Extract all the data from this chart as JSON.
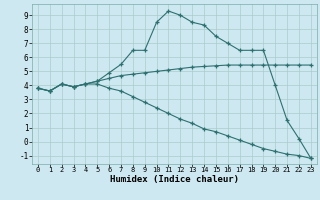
{
  "xlabel": "Humidex (Indice chaleur)",
  "background_color": "#cde8f0",
  "grid_color": "#aacccc",
  "line_color": "#2d7070",
  "xlim": [
    -0.5,
    23.5
  ],
  "ylim": [
    -1.6,
    9.8
  ],
  "xticks": [
    0,
    1,
    2,
    3,
    4,
    5,
    6,
    7,
    8,
    9,
    10,
    11,
    12,
    13,
    14,
    15,
    16,
    17,
    18,
    19,
    20,
    21,
    22,
    23
  ],
  "yticks": [
    -1,
    0,
    1,
    2,
    3,
    4,
    5,
    6,
    7,
    8,
    9
  ],
  "line1_x": [
    0,
    1,
    2,
    3,
    4,
    5,
    6,
    7,
    8,
    9,
    10,
    11,
    12,
    13,
    14,
    15,
    16,
    17,
    18,
    19,
    20,
    21,
    22,
    23
  ],
  "line1_y": [
    3.8,
    3.6,
    4.1,
    3.9,
    4.1,
    4.3,
    4.5,
    4.7,
    4.8,
    4.9,
    5.0,
    5.1,
    5.2,
    5.3,
    5.35,
    5.4,
    5.45,
    5.45,
    5.45,
    5.45,
    5.45,
    5.45,
    5.45,
    5.45
  ],
  "line2_x": [
    0,
    1,
    2,
    3,
    4,
    5,
    6,
    7,
    8,
    9,
    10,
    11,
    12,
    13,
    14,
    15,
    16,
    17,
    18,
    19,
    20,
    21,
    22,
    23
  ],
  "line2_y": [
    3.8,
    3.6,
    4.1,
    3.9,
    4.1,
    4.3,
    4.9,
    5.5,
    6.5,
    6.5,
    8.5,
    9.3,
    9.0,
    8.5,
    8.3,
    7.5,
    7.0,
    6.5,
    6.5,
    6.5,
    4.0,
    1.5,
    0.2,
    -1.2
  ],
  "line3_x": [
    0,
    1,
    2,
    3,
    4,
    5,
    6,
    7,
    8,
    9,
    10,
    11,
    12,
    13,
    14,
    15,
    16,
    17,
    18,
    19,
    20,
    21,
    22,
    23
  ],
  "line3_y": [
    3.8,
    3.6,
    4.1,
    3.9,
    4.1,
    4.1,
    3.8,
    3.6,
    3.2,
    2.8,
    2.4,
    2.0,
    1.6,
    1.3,
    0.9,
    0.7,
    0.4,
    0.1,
    -0.2,
    -0.5,
    -0.7,
    -0.9,
    -1.0,
    -1.2
  ]
}
